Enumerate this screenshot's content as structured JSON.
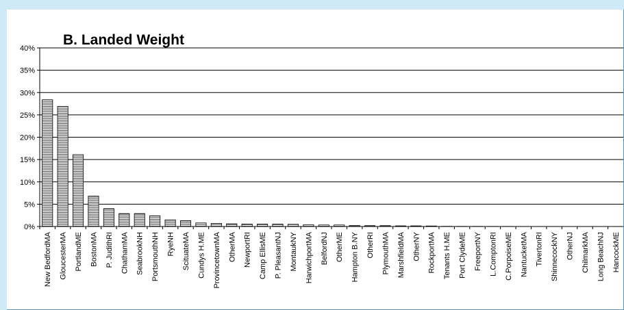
{
  "chart_data": {
    "type": "bar",
    "title": "B.  Landed Weight",
    "xlabel": "",
    "ylabel": "",
    "ylim": [
      0,
      40
    ],
    "yticks": [
      "0%",
      "5%",
      "10%",
      "15%",
      "20%",
      "25%",
      "30%",
      "35%",
      "40%"
    ],
    "ytick_values": [
      0,
      5,
      10,
      15,
      20,
      25,
      30,
      35,
      40
    ],
    "grid": true,
    "legend": "none",
    "bar_color": "#bcbcbc",
    "categories": [
      "New BedfordMA",
      "GloucesterMA",
      "PortlandME",
      "BostonMA",
      "P. JudithRI",
      "ChathamMA",
      "SeabrookNH",
      "PortsmouthNH",
      "RyeNH",
      "ScituateMA",
      "Cundys H.ME",
      "ProvincetownMA",
      "OtherMA",
      "NewportRI",
      "Camp EllisME",
      "P. PleasantNJ",
      "MontaukNY",
      "HarwichportMA",
      "BelfordNJ",
      "OtherME",
      "Hampton B.NY",
      "OtherRI",
      "PlymouthMA",
      "MarshfieldMA",
      "OtherNY",
      "RockportMA",
      "Tenants H.ME",
      "Port ClydeME",
      "FreeportNY",
      "L.ComptonRI",
      "C.PorpoiseME",
      "NantucketMA",
      "TivertonRI",
      "ShinnecockNY",
      "OtherNJ",
      "ChilmarkMA",
      "Long BeachNJ",
      "HancockME"
    ],
    "values": [
      28.4,
      26.9,
      16.1,
      6.8,
      4.0,
      2.9,
      2.9,
      2.4,
      1.5,
      1.3,
      0.8,
      0.7,
      0.6,
      0.55,
      0.55,
      0.55,
      0.5,
      0.4,
      0.35,
      0.35,
      0.25,
      0.2,
      0.2,
      0.15,
      0.15,
      0.12,
      0.05,
      0.04,
      0.04,
      0.03,
      0.03,
      0.02,
      0.02,
      0.02,
      0.01,
      0.01,
      0.01,
      0.01
    ]
  }
}
